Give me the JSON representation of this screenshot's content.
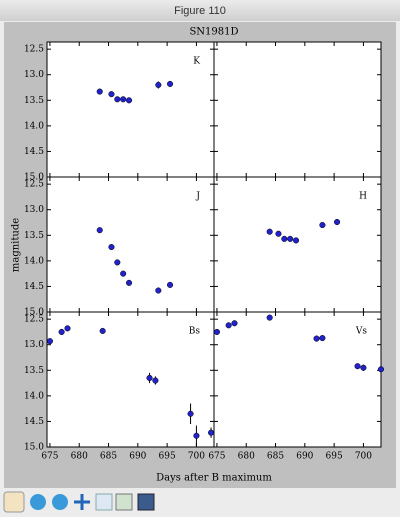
{
  "window": {
    "title": "Figure 110"
  },
  "figure": {
    "title": "SN1981D",
    "xlabel": "Days after B maximum",
    "ylabel": "magnitude"
  },
  "chart_data": [
    {
      "type": "scatter",
      "label": "K",
      "color": "#2222cc",
      "x": [
        683.5,
        685.5,
        686.5,
        687.5,
        688.5,
        693.5,
        695.5
      ],
      "values": [
        13.33,
        13.38,
        13.48,
        13.48,
        13.5,
        13.2,
        13.18
      ],
      "errors": [
        0.03,
        0.03,
        0.03,
        0.03,
        0.03,
        0.07,
        0.05
      ],
      "xlim": [
        674.5,
        703
      ],
      "ylim": [
        15.0,
        12.36
      ],
      "xticks": [
        675,
        680,
        685,
        690,
        695,
        700
      ],
      "yticks": [
        {
          "value": 12.5,
          "label": "12.5"
        },
        {
          "value": 13,
          "label": "13.0"
        },
        {
          "value": 13.5,
          "label": "13.5"
        },
        {
          "value": 14,
          "label": "14.0"
        },
        {
          "value": 14.5,
          "label": "14.5"
        },
        {
          "value": 15,
          "label": "15.0"
        }
      ],
      "xticklabels": false,
      "yticklabels": true
    },
    {
      "type": "scatter",
      "color": "#2222cc",
      "x": [],
      "values": [],
      "errors": [],
      "xlim": [
        674.5,
        703
      ],
      "ylim": [
        15.0,
        12.36
      ],
      "xticks": [
        675,
        680,
        685,
        690,
        695,
        700
      ],
      "yticks": [
        12.5,
        13,
        13.5,
        14,
        14.5,
        15
      ],
      "xticklabels": false,
      "yticklabels": false
    },
    {
      "type": "scatter",
      "label": "J",
      "color": "#2222cc",
      "x": [
        683.5,
        685.5,
        686.5,
        687.5,
        688.5,
        693.5,
        695.5
      ],
      "values": [
        13.4,
        13.73,
        14.03,
        14.25,
        14.43,
        14.58,
        14.47
      ],
      "errors": [
        0.03,
        0.03,
        0.03,
        0.03,
        0.03,
        0.03,
        0.05
      ],
      "xlim": [
        674.5,
        703
      ],
      "ylim": [
        15.0,
        12.36
      ],
      "xticks": [
        675,
        680,
        685,
        690,
        695,
        700
      ],
      "yticks": [
        {
          "value": 12.5,
          "label": "12.5"
        },
        {
          "value": 13,
          "label": "13.0"
        },
        {
          "value": 13.5,
          "label": "13.5"
        },
        {
          "value": 14,
          "label": "14.0"
        },
        {
          "value": 14.5,
          "label": "14.5"
        },
        {
          "value": 15,
          "label": "15.0"
        }
      ],
      "xticklabels": false,
      "yticklabels": true
    },
    {
      "type": "scatter",
      "label": "H",
      "color": "#2222cc",
      "x": [
        684,
        685.5,
        686.5,
        687.5,
        688.5,
        693,
        695.5
      ],
      "values": [
        13.43,
        13.47,
        13.57,
        13.57,
        13.6,
        13.3,
        13.24
      ],
      "errors": [
        0.03,
        0.03,
        0.03,
        0.03,
        0.03,
        0.03,
        0.04
      ],
      "xlim": [
        674.5,
        703
      ],
      "ylim": [
        15.0,
        12.36
      ],
      "xticks": [
        675,
        680,
        685,
        690,
        695,
        700
      ],
      "yticks": [
        12.5,
        13,
        13.5,
        14,
        14.5,
        15
      ],
      "xticklabels": false,
      "yticklabels": false
    },
    {
      "type": "scatter",
      "label": "Bs",
      "color": "#2222cc",
      "x": [
        675,
        677,
        678,
        684,
        692,
        693,
        699,
        700,
        702.5
      ],
      "values": [
        12.93,
        12.75,
        12.68,
        12.73,
        13.65,
        13.7,
        14.35,
        14.78,
        14.72
      ],
      "errors": [
        0.03,
        0.06,
        0.05,
        0.05,
        0.1,
        0.08,
        0.2,
        0.2,
        0.1
      ],
      "xlim": [
        674.5,
        703
      ],
      "ylim": [
        15.0,
        12.36
      ],
      "xticks": [
        675,
        680,
        685,
        690,
        695,
        700
      ],
      "yticks": [
        {
          "value": 12.5,
          "label": "12.5"
        },
        {
          "value": 13,
          "label": "13.0"
        },
        {
          "value": 13.5,
          "label": "13.5"
        },
        {
          "value": 14,
          "label": "14.0"
        },
        {
          "value": 14.5,
          "label": "14.5"
        },
        {
          "value": 15,
          "label": "15.0"
        }
      ],
      "xticklabels": true,
      "yticklabels": true
    },
    {
      "type": "scatter",
      "label": "Vs",
      "color": "#2222cc",
      "x": [
        675,
        677,
        678,
        684,
        692,
        693,
        699,
        700,
        703
      ],
      "values": [
        12.75,
        12.62,
        12.58,
        12.47,
        12.88,
        12.87,
        13.42,
        13.45,
        13.48
      ],
      "errors": [
        0.03,
        0.03,
        0.03,
        0.03,
        0.03,
        0.03,
        0.05,
        0.06,
        0.05
      ],
      "xlim": [
        674.5,
        703
      ],
      "ylim": [
        15.0,
        12.36
      ],
      "xticks": [
        675,
        680,
        685,
        690,
        695,
        700
      ],
      "yticks": [
        12.5,
        13,
        13.5,
        14,
        14.5,
        15
      ],
      "xticklabels": true,
      "yticklabels": false
    }
  ]
}
